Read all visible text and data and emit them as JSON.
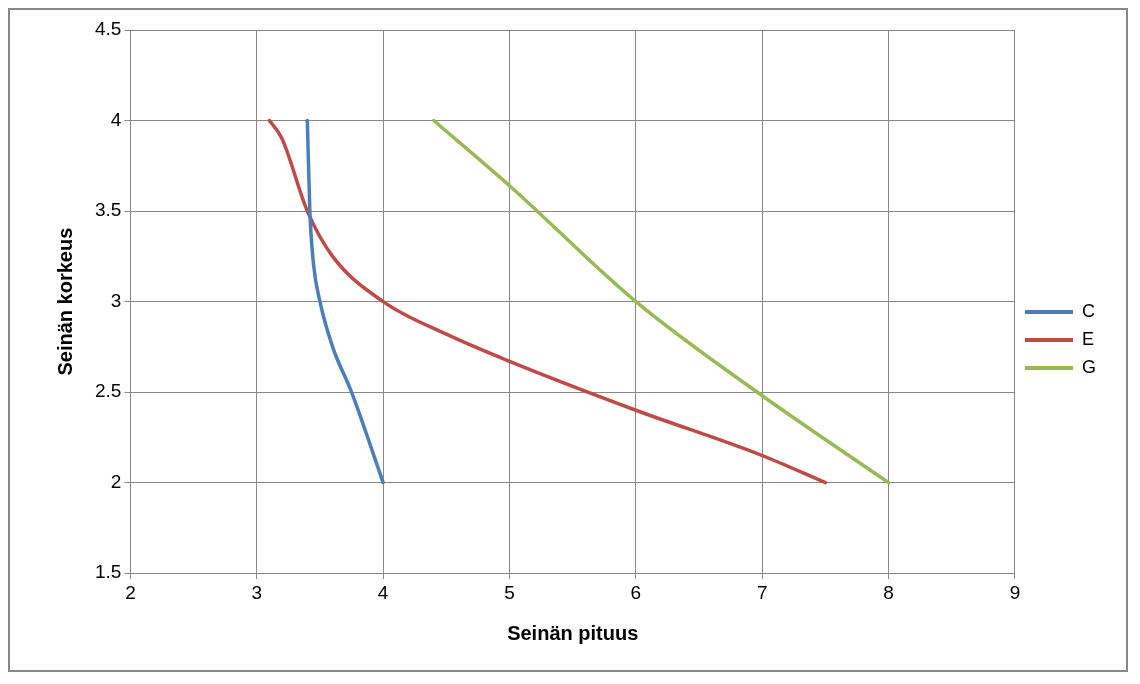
{
  "chart_data": {
    "type": "line",
    "xlabel": "Seinän pituus",
    "ylabel": "Seinän korkeus",
    "xlim": [
      2,
      9
    ],
    "xticks": [
      2,
      3,
      4,
      5,
      6,
      7,
      8,
      9
    ],
    "ylim": [
      1.5,
      4.5
    ],
    "yticks": [
      1.5,
      2,
      2.5,
      3,
      3.5,
      4,
      4.5
    ],
    "grid": true,
    "legend": "right",
    "marker": "none",
    "series": [
      {
        "name": "C",
        "color": "#4a7ebb",
        "x": [
          3.4,
          3.42,
          3.45,
          3.5,
          3.6,
          3.75,
          4
        ],
        "values": [
          4,
          3.5,
          3.2,
          3,
          2.75,
          2.5,
          2
        ]
      },
      {
        "name": "E",
        "color": "#be4b48",
        "x": [
          3.1,
          3.2,
          3.4,
          3.6,
          4,
          4.5,
          5,
          6,
          7,
          7.5
        ],
        "values": [
          4,
          3.9,
          3.5,
          3.25,
          3,
          2.82,
          2.67,
          2.4,
          2.15,
          2
        ]
      },
      {
        "name": "G",
        "color": "#98b954",
        "x": [
          4.4,
          5,
          6,
          7,
          8
        ],
        "values": [
          4,
          3.64,
          3,
          2.48,
          2
        ]
      }
    ]
  }
}
